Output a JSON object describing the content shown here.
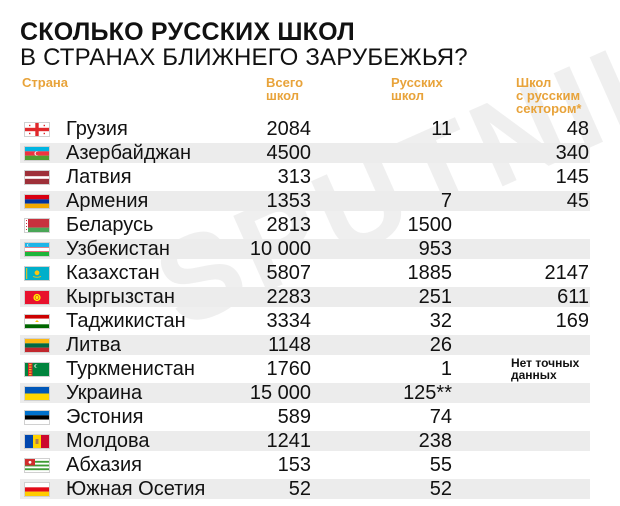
{
  "chart_data": {
    "type": "table",
    "title": "СКОЛЬКО РУССКИХ ШКОЛ",
    "subtitle": "В СТРАНАХ БЛИЖНЕГО ЗАРУБЕЖЬЯ?",
    "columns": [
      {
        "key": "country",
        "label": "Страна"
      },
      {
        "key": "total",
        "label": "Всего\nшкол"
      },
      {
        "key": "russian",
        "label": "Русских\nшкол"
      },
      {
        "key": "sector",
        "label": "Школ\nс русским\nсектором*"
      }
    ],
    "rows": [
      {
        "country": "Грузия",
        "total": "2084",
        "russian": "11",
        "sector": "48",
        "flag": "georgia-flag-icon"
      },
      {
        "country": "Азербайджан",
        "total": "4500",
        "russian": "",
        "sector": "340",
        "flag": "azerbaijan-flag-icon"
      },
      {
        "country": "Латвия",
        "total": "313",
        "russian": "",
        "sector": "145",
        "flag": "latvia-flag-icon"
      },
      {
        "country": "Армения",
        "total": "1353",
        "russian": "7",
        "sector": "45",
        "flag": "armenia-flag-icon"
      },
      {
        "country": "Беларусь",
        "total": "2813",
        "russian": "1500",
        "sector": "",
        "flag": "belarus-flag-icon"
      },
      {
        "country": "Узбекистан",
        "total": "10 000",
        "russian": "953",
        "sector": "",
        "flag": "uzbekistan-flag-icon"
      },
      {
        "country": "Казахстан",
        "total": "5807",
        "russian": "1885",
        "sector": "2147",
        "flag": "kazakhstan-flag-icon"
      },
      {
        "country": "Кыргызстан",
        "total": "2283",
        "russian": "251",
        "sector": "611",
        "flag": "kyrgyzstan-flag-icon"
      },
      {
        "country": "Таджикистан",
        "total": "3334",
        "russian": "32",
        "sector": "169",
        "flag": "tajikistan-flag-icon"
      },
      {
        "country": "Литва",
        "total": "1148",
        "russian": "26",
        "sector": "",
        "flag": "lithuania-flag-icon"
      },
      {
        "country": "Туркменистан",
        "total": "1760",
        "russian": "1",
        "sector": "",
        "note": "Нет точных\nданных",
        "flag": "turkmenistan-flag-icon"
      },
      {
        "country": "Украина",
        "total": "15 000",
        "russian": "125**",
        "sector": "",
        "flag": "ukraine-flag-icon"
      },
      {
        "country": "Эстония",
        "total": "589",
        "russian": "74",
        "sector": "",
        "flag": "estonia-flag-icon"
      },
      {
        "country": "Молдова",
        "total": "1241",
        "russian": "238",
        "sector": "",
        "flag": "moldova-flag-icon"
      },
      {
        "country": "Абхазия",
        "total": "153",
        "russian": "55",
        "sector": "",
        "flag": "abkhazia-flag-icon"
      },
      {
        "country": "Южная Осетия",
        "total": "52",
        "russian": "52",
        "sector": "",
        "flag": "south-ossetia-flag-icon"
      }
    ]
  },
  "colors": {
    "header_accent": "#e8a33a",
    "stripe": "#ececec",
    "text": "#111111"
  }
}
